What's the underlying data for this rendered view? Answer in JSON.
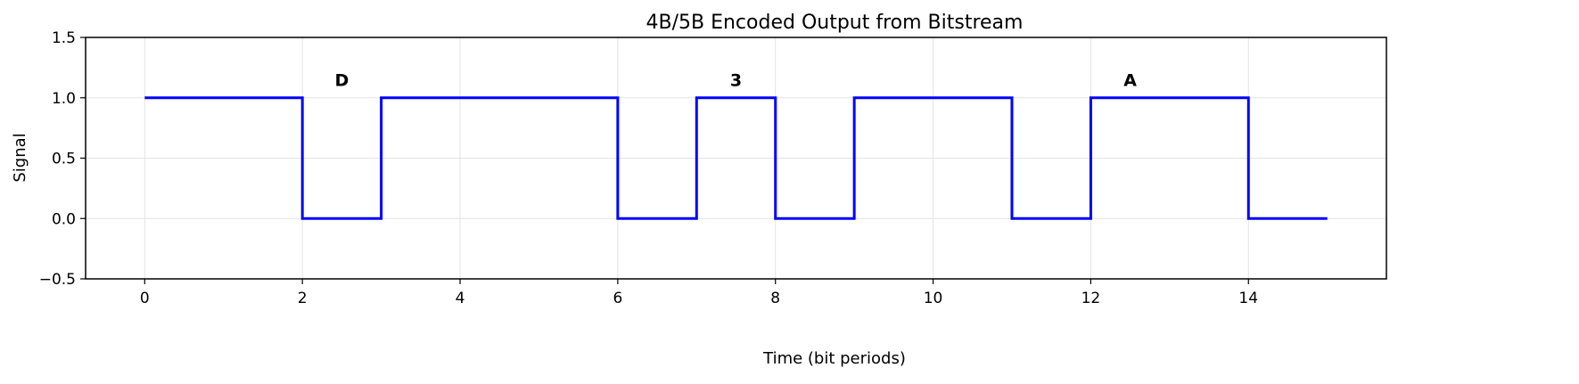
{
  "chart_data": {
    "type": "line",
    "step": "post",
    "title": "4B/5B Encoded Output from Bitstream",
    "xlabel": "Time (bit periods)",
    "ylabel": "Signal",
    "xlim": [
      -0.75,
      15.75
    ],
    "ylim": [
      -0.5,
      1.5
    ],
    "xticks": [
      0,
      2,
      4,
      6,
      8,
      10,
      12,
      14
    ],
    "xtick_labels": [
      "0",
      "2",
      "4",
      "6",
      "8",
      "10",
      "12",
      "14"
    ],
    "yticks": [
      -0.5,
      0.0,
      0.5,
      1.0,
      1.5
    ],
    "ytick_labels": [
      "−0.5",
      "0.0",
      "0.5",
      "1.0",
      "1.5"
    ],
    "grid": true,
    "series": [
      {
        "color": "#0000ff",
        "points": [
          [
            0,
            1
          ],
          [
            2,
            1
          ],
          [
            2,
            0
          ],
          [
            3,
            0
          ],
          [
            3,
            1
          ],
          [
            6,
            1
          ],
          [
            6,
            0
          ],
          [
            7,
            0
          ],
          [
            7,
            1
          ],
          [
            8,
            1
          ],
          [
            8,
            0
          ],
          [
            9,
            0
          ],
          [
            9,
            1
          ],
          [
            11,
            1
          ],
          [
            11,
            0
          ],
          [
            12,
            0
          ],
          [
            12,
            1
          ],
          [
            14,
            1
          ],
          [
            14,
            0
          ],
          [
            15,
            0
          ]
        ]
      }
    ],
    "annotations": [
      {
        "text": "D",
        "x": 2.5,
        "y": 1.15
      },
      {
        "text": "3",
        "x": 7.5,
        "y": 1.15
      },
      {
        "text": "A",
        "x": 12.5,
        "y": 1.15
      }
    ]
  }
}
